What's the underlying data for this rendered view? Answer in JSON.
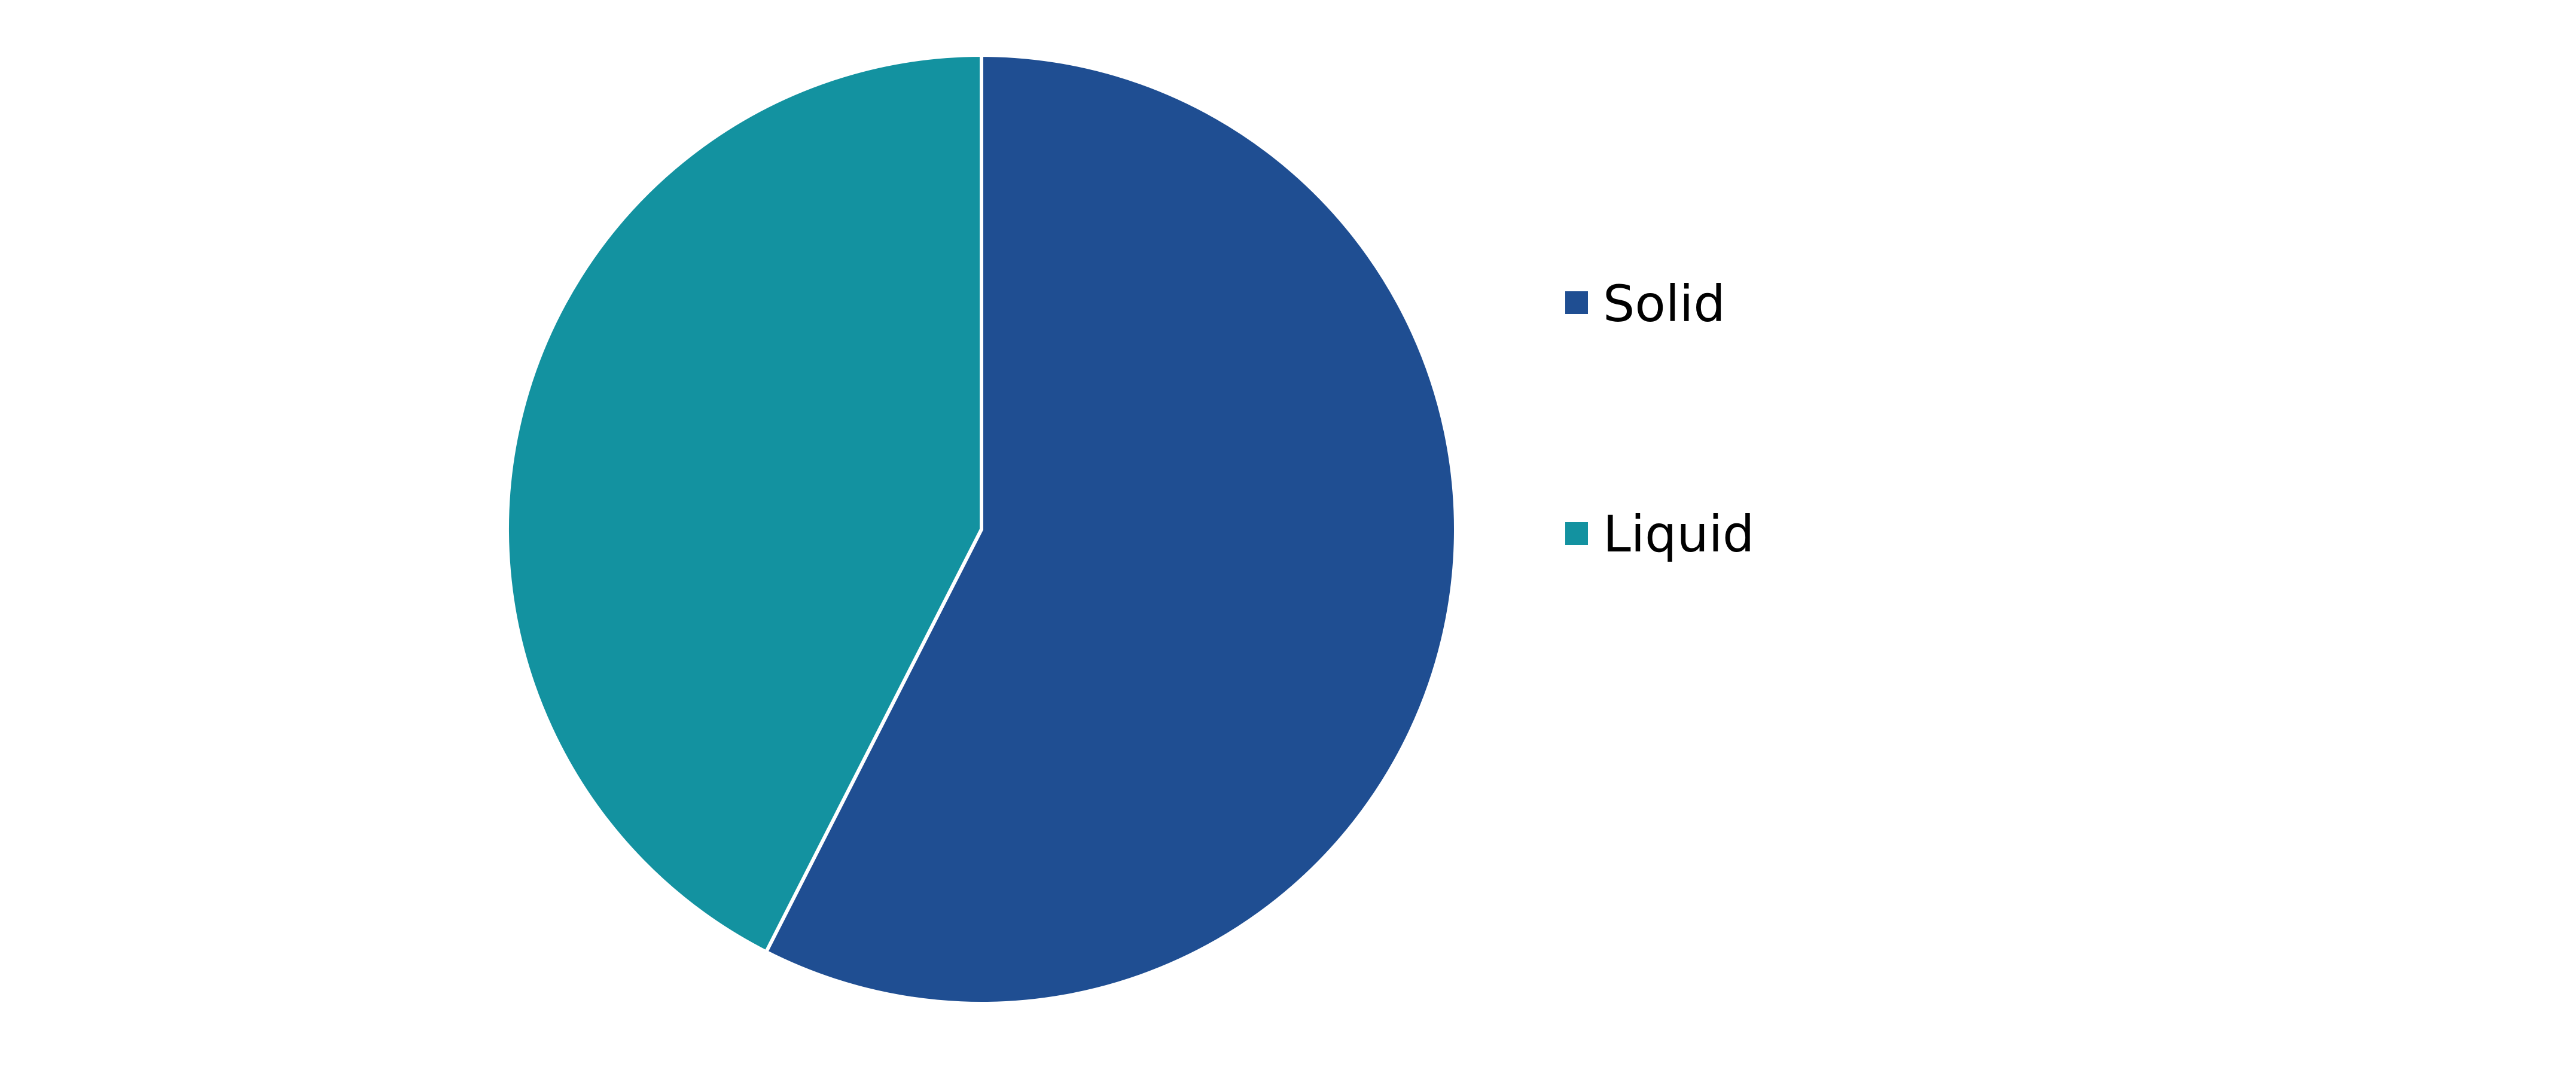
{
  "chart_data": {
    "type": "pie",
    "title": "",
    "start_angle_deg": 0,
    "direction": "clockwise",
    "legend_position": "right",
    "series": [
      {
        "name": "Solid",
        "value": 57.5,
        "color": "#1F4E92"
      },
      {
        "name": "Liquid",
        "value": 42.5,
        "color": "#1392A0"
      }
    ]
  }
}
